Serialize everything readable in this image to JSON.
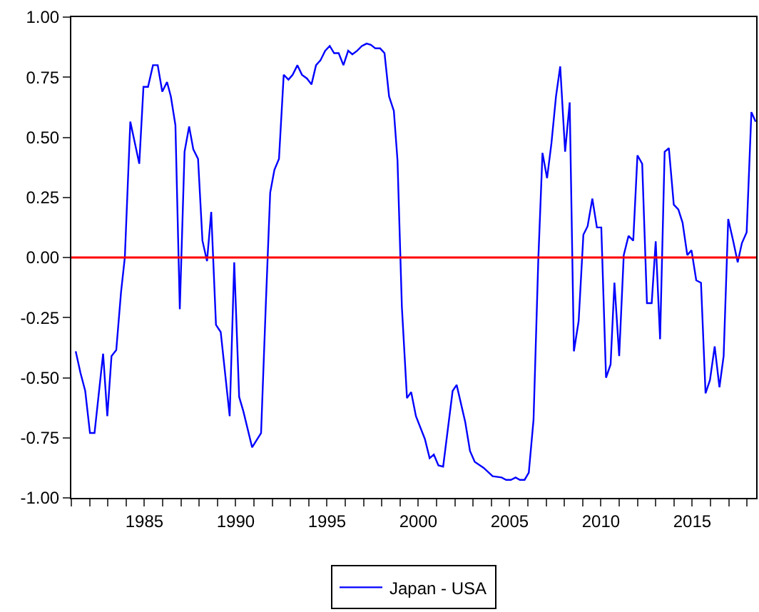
{
  "chart_data": {
    "type": "line",
    "x": [
      1981.24,
      1981.5,
      1981.76,
      1982.02,
      1982.27,
      1982.74,
      1982.97,
      1983.2,
      1983.46,
      1983.72,
      1983.93,
      1984.23,
      1984.72,
      1984.95,
      1985.2,
      1985.47,
      1985.73,
      1985.98,
      1986.24,
      1986.45,
      1986.7,
      1986.94,
      1987.2,
      1987.45,
      1987.68,
      1987.94,
      1988.18,
      1988.43,
      1988.66,
      1988.92,
      1989.18,
      1989.67,
      1989.92,
      1990.19,
      1990.42,
      1990.9,
      1991.39,
      1991.65,
      1991.89,
      1992.12,
      1992.37,
      1992.63,
      1992.89,
      1993.12,
      1993.38,
      1993.63,
      1993.9,
      1994.15,
      1994.4,
      1994.64,
      1994.9,
      1995.15,
      1995.39,
      1995.64,
      1995.9,
      1996.16,
      1996.39,
      1996.65,
      1996.91,
      1997.17,
      1997.4,
      1997.65,
      1997.91,
      1998.15,
      1998.4,
      1998.66,
      1998.86,
      1999.1,
      1999.38,
      1999.61,
      1999.87,
      2000.36,
      2000.62,
      2000.85,
      2001.1,
      2001.36,
      2001.88,
      2002.1,
      2002.57,
      2002.83,
      2003.09,
      2003.58,
      2004.07,
      2004.56,
      2004.81,
      2005.07,
      2005.33,
      2005.56,
      2005.82,
      2006.05,
      2006.31,
      2006.57,
      2006.8,
      2007.05,
      2007.29,
      2007.54,
      2007.77,
      2008.04,
      2008.29,
      2008.52,
      2008.78,
      2009.04,
      2009.27,
      2009.53,
      2009.78,
      2010.02,
      2010.28,
      2010.53,
      2010.74,
      2011.0,
      2011.25,
      2011.51,
      2011.77,
      2012.0,
      2012.26,
      2012.52,
      2012.78,
      2013.0,
      2013.24,
      2013.49,
      2013.72,
      2013.99,
      2014.24,
      2014.47,
      2014.73,
      2014.96,
      2015.22,
      2015.48,
      2015.73,
      2015.97,
      2016.23,
      2016.49,
      2016.72,
      2016.97,
      2017.24,
      2017.49,
      2017.72,
      2017.98,
      2018.24,
      2018.47
    ],
    "series": [
      {
        "name": "Japan - USA",
        "color": "#0000ff",
        "values": [
          -0.39,
          -0.48,
          -0.555,
          -0.73,
          -0.73,
          -0.4,
          -0.66,
          -0.41,
          -0.385,
          -0.145,
          0.0,
          0.565,
          0.39,
          0.71,
          0.71,
          0.8,
          0.8,
          0.69,
          0.73,
          0.67,
          0.55,
          -0.215,
          0.44,
          0.545,
          0.45,
          0.41,
          0.07,
          -0.015,
          0.19,
          -0.28,
          -0.31,
          -0.66,
          -0.02,
          -0.58,
          -0.64,
          -0.79,
          -0.73,
          -0.195,
          0.27,
          0.365,
          0.41,
          0.76,
          0.74,
          0.76,
          0.8,
          0.76,
          0.745,
          0.72,
          0.8,
          0.82,
          0.86,
          0.88,
          0.85,
          0.85,
          0.8,
          0.86,
          0.845,
          0.86,
          0.88,
          0.89,
          0.885,
          0.87,
          0.87,
          0.85,
          0.67,
          0.61,
          0.405,
          -0.205,
          -0.585,
          -0.56,
          -0.66,
          -0.755,
          -0.835,
          -0.82,
          -0.865,
          -0.87,
          -0.555,
          -0.53,
          -0.685,
          -0.805,
          -0.85,
          -0.875,
          -0.91,
          -0.915,
          -0.925,
          -0.925,
          -0.915,
          -0.925,
          -0.925,
          -0.895,
          -0.675,
          -0.01,
          0.435,
          0.33,
          0.475,
          0.67,
          0.795,
          0.44,
          0.645,
          -0.39,
          -0.265,
          0.095,
          0.13,
          0.245,
          0.125,
          0.125,
          -0.5,
          -0.445,
          -0.105,
          -0.41,
          0.01,
          0.09,
          0.07,
          0.425,
          0.39,
          -0.19,
          -0.19,
          0.067,
          -0.34,
          0.44,
          0.455,
          0.22,
          0.2,
          0.145,
          0.01,
          0.03,
          -0.095,
          -0.105,
          -0.565,
          -0.51,
          -0.37,
          -0.54,
          -0.41,
          0.16,
          0.07,
          -0.02,
          0.06,
          0.105,
          0.605,
          0.565
        ]
      }
    ],
    "xlim": [
      1981,
      2018.5
    ],
    "xticks": [
      {
        "value": 1981,
        "label": null
      },
      {
        "value": 1982,
        "label": null
      },
      {
        "value": 1983,
        "label": null
      },
      {
        "value": 1984,
        "label": null
      },
      1985,
      {
        "value": 1986,
        "label": null
      },
      {
        "value": 1987,
        "label": null
      },
      {
        "value": 1988,
        "label": null
      },
      {
        "value": 1989,
        "label": null
      },
      1990,
      {
        "value": 1991,
        "label": null
      },
      {
        "value": 1992,
        "label": null
      },
      {
        "value": 1993,
        "label": null
      },
      {
        "value": 1994,
        "label": null
      },
      1995,
      {
        "value": 1996,
        "label": null
      },
      {
        "value": 1997,
        "label": null
      },
      {
        "value": 1998,
        "label": null
      },
      {
        "value": 1999,
        "label": null
      },
      2000,
      {
        "value": 2001,
        "label": null
      },
      {
        "value": 2002,
        "label": null
      },
      {
        "value": 2003,
        "label": null
      },
      {
        "value": 2004,
        "label": null
      },
      2005,
      {
        "value": 2006,
        "label": null
      },
      {
        "value": 2007,
        "label": null
      },
      {
        "value": 2008,
        "label": null
      },
      {
        "value": 2009,
        "label": null
      },
      2010,
      {
        "value": 2011,
        "label": null
      },
      {
        "value": 2012,
        "label": null
      },
      {
        "value": 2013,
        "label": null
      },
      {
        "value": 2014,
        "label": null
      },
      2015,
      {
        "value": 2016,
        "label": null
      },
      {
        "value": 2017,
        "label": null
      },
      {
        "value": 2018,
        "label": null
      }
    ],
    "ylim": [
      -1.0,
      1.0
    ],
    "yticks": [
      {
        "value": -1.0,
        "label": "-1.00"
      },
      {
        "value": -0.75,
        "label": "-0.75"
      },
      {
        "value": -0.5,
        "label": "-0.50"
      },
      {
        "value": -0.25,
        "label": "-0.25"
      },
      {
        "value": 0.0,
        "label": "0.00"
      },
      {
        "value": 0.25,
        "label": "0.25"
      },
      {
        "value": 0.5,
        "label": "0.50"
      },
      {
        "value": 0.75,
        "label": "0.75"
      },
      {
        "value": 1.0,
        "label": "1.00"
      }
    ],
    "ref_lines": [
      {
        "axis": "y",
        "value": 0.0,
        "color": "#ff0000",
        "line_style": "solid"
      }
    ],
    "legend": "bottom",
    "marker": "none",
    "line_style": "solid"
  }
}
